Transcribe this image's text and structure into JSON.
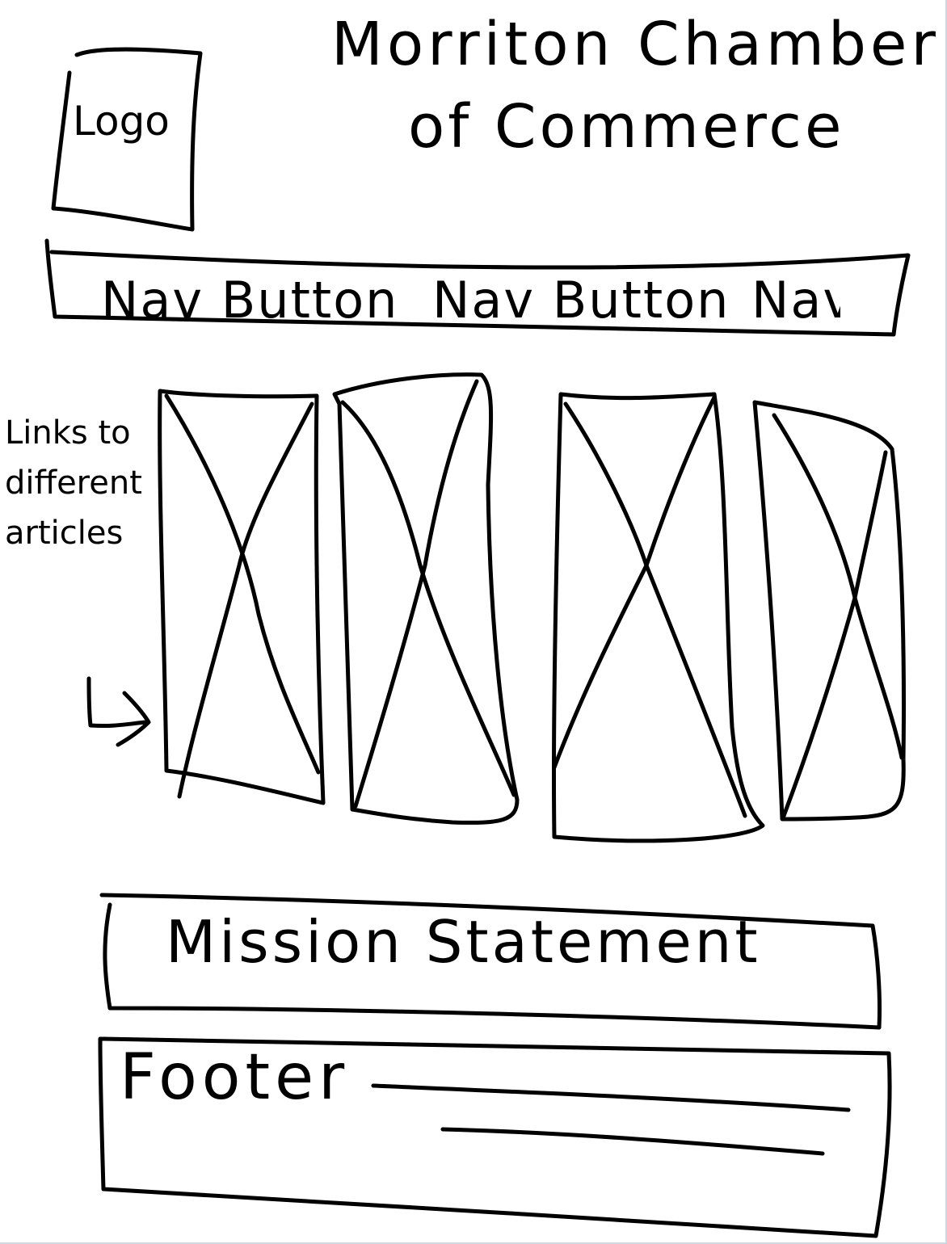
{
  "header": {
    "logo_label": "Logo",
    "title_line_1": "Morriton Chamber",
    "title_line_2": "of Commerce"
  },
  "nav": {
    "items": [
      {
        "label": "Nav Button"
      },
      {
        "label": "Nav Button"
      },
      {
        "label": "Nav"
      }
    ]
  },
  "articles": {
    "note": "Links to different articles",
    "cards": [
      {
        "placeholder": "image-placeholder"
      },
      {
        "placeholder": "image-placeholder"
      },
      {
        "placeholder": "image-placeholder"
      },
      {
        "placeholder": "image-placeholder"
      }
    ]
  },
  "mission": {
    "label": "Mission Statement"
  },
  "footer": {
    "label": "Footer"
  },
  "colors": {
    "ink": "#000000",
    "paper": "#ffffff",
    "frame": "#cfd8e3"
  }
}
